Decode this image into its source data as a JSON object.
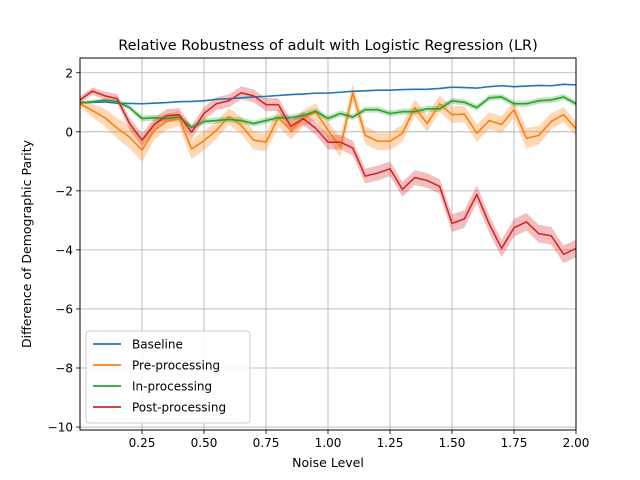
{
  "chart_data": {
    "type": "line",
    "title": "Relative Robustness of adult with Logistic Regression (LR)",
    "xlabel": "Noise Level",
    "ylabel": "Difference of Demographic Parity",
    "xlim": [
      0.0,
      2.0
    ],
    "ylim": [
      -10.1,
      2.5
    ],
    "xticks": [
      0.25,
      0.5,
      0.75,
      1.0,
      1.25,
      1.5,
      1.75,
      2.0
    ],
    "xtick_labels": [
      "0.25",
      "0.50",
      "0.75",
      "1.00",
      "1.25",
      "1.50",
      "1.75",
      "2.00"
    ],
    "yticks": [
      2,
      0,
      -2,
      -4,
      -6,
      -8,
      -10
    ],
    "ytick_labels": [
      "2",
      "0",
      "−2",
      "−4",
      "−6",
      "−8",
      "−10"
    ],
    "grid": true,
    "legend_position": "lower-left",
    "x": [
      0.0,
      0.05,
      0.1,
      0.15,
      0.2,
      0.25,
      0.3,
      0.35,
      0.4,
      0.45,
      0.5,
      0.55,
      0.6,
      0.65,
      0.7,
      0.75,
      0.8,
      0.85,
      0.9,
      0.95,
      1.0,
      1.05,
      1.1,
      1.15,
      1.2,
      1.25,
      1.3,
      1.35,
      1.4,
      1.45,
      1.5,
      1.55,
      1.6,
      1.65,
      1.7,
      1.75,
      1.8,
      1.85,
      1.9,
      1.95,
      2.0
    ],
    "series": [
      {
        "name": "Baseline",
        "color": "#1f77b4",
        "values": [
          0.99,
          1.0,
          1.01,
          0.97,
          0.96,
          0.95,
          0.97,
          0.99,
          1.02,
          1.03,
          1.05,
          1.1,
          1.12,
          1.15,
          1.18,
          1.2,
          1.23,
          1.26,
          1.28,
          1.31,
          1.31,
          1.34,
          1.37,
          1.39,
          1.41,
          1.41,
          1.43,
          1.44,
          1.44,
          1.47,
          1.51,
          1.5,
          1.48,
          1.53,
          1.56,
          1.53,
          1.55,
          1.57,
          1.56,
          1.61,
          1.59
        ],
        "band": [
          0.02,
          0.02,
          0.02,
          0.02,
          0.02,
          0.02,
          0.02,
          0.02,
          0.02,
          0.02,
          0.02,
          0.02,
          0.02,
          0.02,
          0.02,
          0.02,
          0.02,
          0.02,
          0.02,
          0.02,
          0.02,
          0.02,
          0.02,
          0.02,
          0.02,
          0.02,
          0.02,
          0.02,
          0.02,
          0.02,
          0.02,
          0.02,
          0.02,
          0.02,
          0.02,
          0.02,
          0.02,
          0.02,
          0.02,
          0.02,
          0.02
        ]
      },
      {
        "name": "Pre-processing",
        "color": "#ff7f0e",
        "values": [
          0.95,
          0.72,
          0.48,
          0.12,
          -0.18,
          -0.62,
          0.05,
          0.35,
          0.45,
          -0.58,
          -0.3,
          0.05,
          0.52,
          0.22,
          -0.28,
          -0.35,
          0.48,
          0.05,
          0.45,
          0.68,
          0.05,
          -0.52,
          1.32,
          -0.12,
          -0.32,
          -0.32,
          -0.05,
          0.82,
          0.28,
          0.95,
          0.58,
          0.6,
          -0.05,
          0.38,
          0.25,
          0.75,
          -0.22,
          -0.12,
          0.35,
          0.58,
          0.1
        ],
        "band": [
          0.12,
          0.22,
          0.3,
          0.35,
          0.38,
          0.4,
          0.32,
          0.28,
          0.25,
          0.35,
          0.32,
          0.3,
          0.28,
          0.3,
          0.32,
          0.3,
          0.32,
          0.3,
          0.28,
          0.28,
          0.28,
          0.35,
          0.32,
          0.3,
          0.3,
          0.3,
          0.3,
          0.28,
          0.28,
          0.28,
          0.28,
          0.28,
          0.3,
          0.28,
          0.28,
          0.28,
          0.35,
          0.32,
          0.28,
          0.25,
          0.25
        ]
      },
      {
        "name": "In-processing",
        "color": "#2ca02c",
        "values": [
          0.98,
          1.02,
          1.07,
          1.02,
          0.82,
          0.45,
          0.48,
          0.45,
          0.5,
          0.15,
          0.35,
          0.38,
          0.42,
          0.38,
          0.28,
          0.38,
          0.48,
          0.48,
          0.55,
          0.7,
          0.45,
          0.62,
          0.5,
          0.75,
          0.75,
          0.62,
          0.68,
          0.68,
          0.78,
          0.78,
          1.05,
          1.0,
          0.82,
          1.15,
          1.18,
          0.95,
          0.95,
          1.05,
          1.08,
          1.18,
          0.95
        ],
        "band": [
          0.06,
          0.06,
          0.06,
          0.08,
          0.08,
          0.1,
          0.1,
          0.1,
          0.1,
          0.1,
          0.1,
          0.1,
          0.1,
          0.1,
          0.1,
          0.1,
          0.1,
          0.1,
          0.1,
          0.1,
          0.1,
          0.1,
          0.1,
          0.1,
          0.1,
          0.1,
          0.1,
          0.1,
          0.1,
          0.1,
          0.1,
          0.1,
          0.1,
          0.1,
          0.1,
          0.1,
          0.1,
          0.1,
          0.1,
          0.1,
          0.1
        ]
      },
      {
        "name": "Post-processing",
        "color": "#d62728",
        "values": [
          1.08,
          1.38,
          1.22,
          1.12,
          0.28,
          -0.28,
          0.25,
          0.55,
          0.58,
          -0.02,
          0.62,
          0.95,
          1.05,
          1.32,
          1.22,
          0.92,
          0.92,
          0.18,
          0.45,
          0.12,
          -0.35,
          -0.35,
          -0.55,
          -1.5,
          -1.4,
          -1.25,
          -1.95,
          -1.55,
          -1.65,
          -1.85,
          -3.1,
          -2.95,
          -2.12,
          -3.12,
          -3.95,
          -3.25,
          -3.05,
          -3.45,
          -3.52,
          -4.15,
          -3.95
        ],
        "band": [
          0.12,
          0.12,
          0.14,
          0.16,
          0.2,
          0.22,
          0.22,
          0.22,
          0.22,
          0.22,
          0.22,
          0.22,
          0.22,
          0.22,
          0.22,
          0.22,
          0.22,
          0.22,
          0.22,
          0.22,
          0.25,
          0.25,
          0.25,
          0.25,
          0.25,
          0.25,
          0.25,
          0.25,
          0.25,
          0.25,
          0.3,
          0.3,
          0.3,
          0.3,
          0.3,
          0.3,
          0.3,
          0.3,
          0.3,
          0.3,
          0.3
        ]
      }
    ]
  }
}
